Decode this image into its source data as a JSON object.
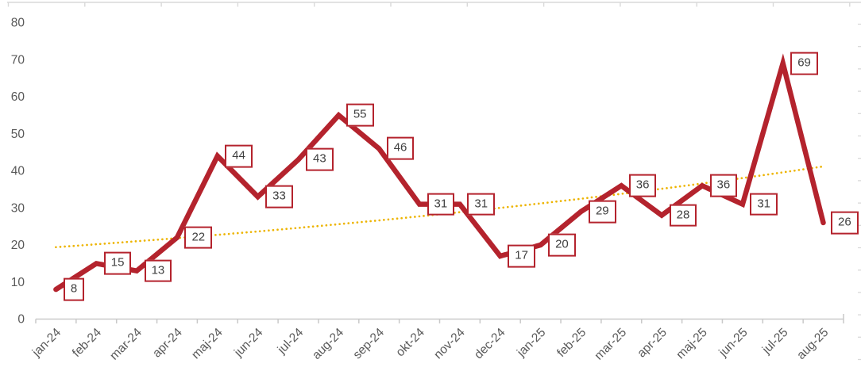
{
  "chart_data": {
    "type": "line",
    "title": "",
    "categories": [
      "jan-24",
      "feb-24",
      "mar-24",
      "apr-24",
      "maj-24",
      "jun-24",
      "jul-24",
      "aug-24",
      "sep-24",
      "okt-24",
      "nov-24",
      "dec-24",
      "jan-25",
      "feb-25",
      "mar-25",
      "apr-25",
      "maj-25",
      "jun-25",
      "jul-25",
      "aug-25"
    ],
    "series": [
      {
        "values": [
          8,
          15,
          13,
          22,
          44,
          33,
          43,
          55,
          46,
          31,
          31,
          17,
          20,
          29,
          36,
          28,
          36,
          31,
          69,
          26
        ]
      }
    ],
    "data_labels": {
      "shown": true,
      "position": "right-of-point",
      "boxed": true,
      "values": [
        8,
        15,
        13,
        22,
        44,
        33,
        43,
        55,
        46,
        31,
        31,
        17,
        20,
        29,
        36,
        28,
        36,
        31,
        69,
        26
      ]
    },
    "trendline": {
      "type": "exponential",
      "line_style": "dotted",
      "start_value": 19.4,
      "end_value": 41.2
    },
    "y_axis": {
      "min": 0,
      "max": 80,
      "tick_interval": 10,
      "ticks": [
        "0",
        "10",
        "20",
        "30",
        "40",
        "50",
        "60",
        "70",
        "80"
      ]
    },
    "x_axis": {
      "label_rotation_deg": -45
    },
    "legend": "none",
    "grid": "off",
    "colors": {
      "series_line": "#B4232D",
      "label_box_border": "#B4232D",
      "label_box_fill": "#FFFFFF",
      "label_text": "#3F3F3F",
      "trendline": "#EDB400",
      "axis_text": "#595959",
      "axis_line": "#C9C9C9",
      "border_ticks": "#D9D9D9"
    }
  }
}
